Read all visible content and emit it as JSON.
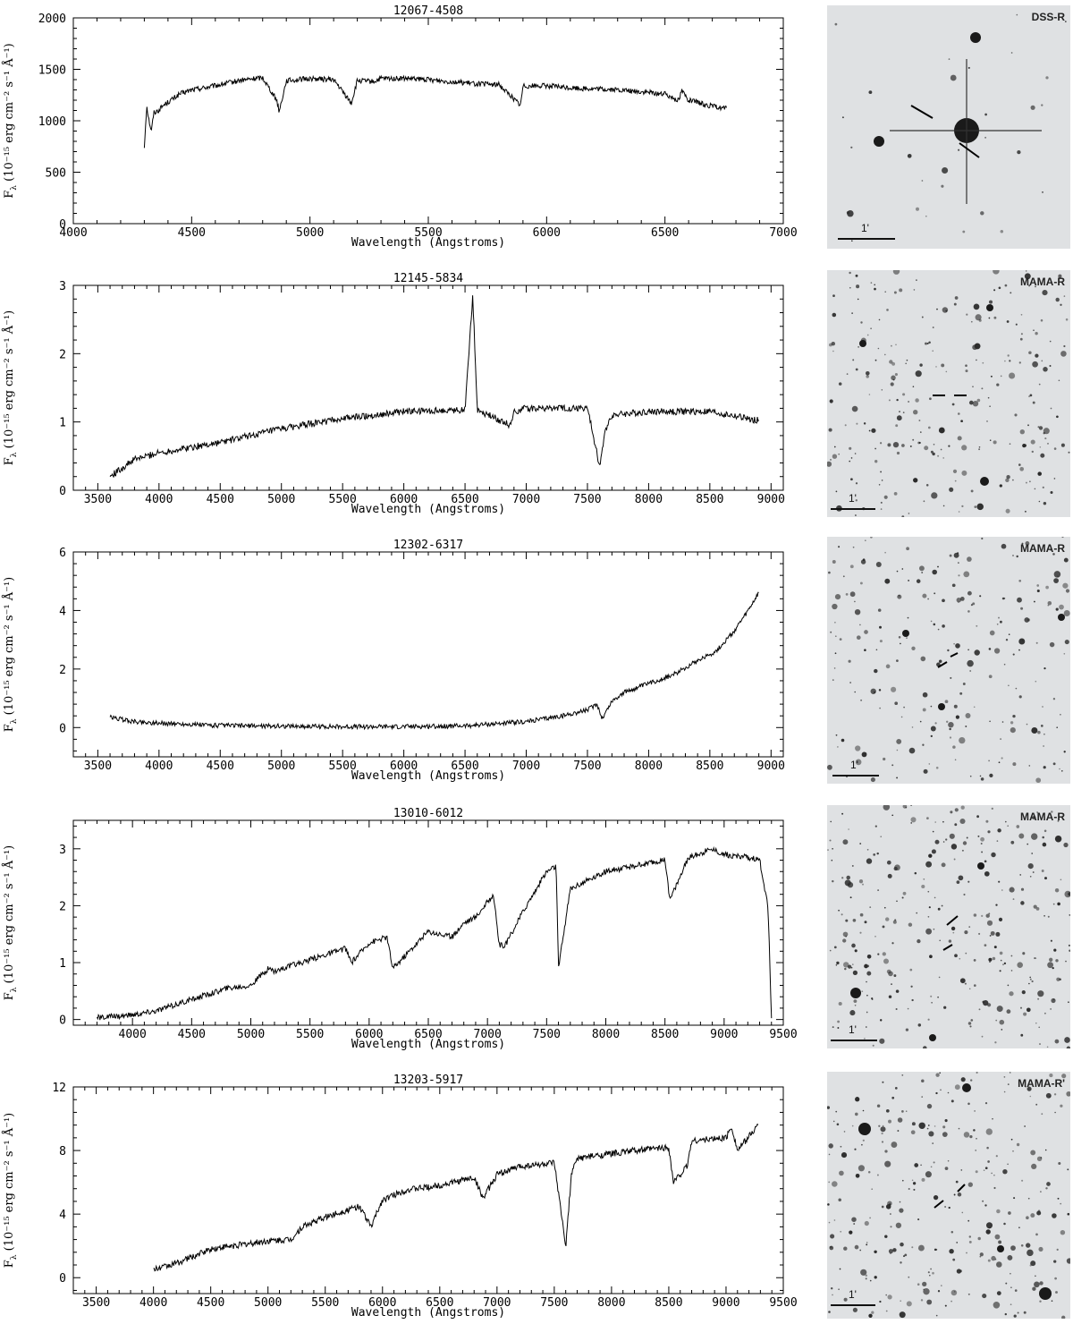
{
  "chart_data": [
    {
      "type": "line",
      "title": "12067-4508",
      "xlabel": "Wavelength (Angstroms)",
      "ylabel_base": "F",
      "ylabel_sub": "λ",
      "ylabel_unit": "(10⁻¹⁵ erg cm⁻² s⁻¹ Å⁻¹)",
      "xlim": [
        4000,
        7000
      ],
      "ylim": [
        0,
        2000
      ],
      "xticks": [
        4000,
        4500,
        5000,
        5500,
        6000,
        6500,
        7000
      ],
      "yticks": [
        0,
        500,
        1000,
        1500,
        2000
      ],
      "grid": false,
      "series": [
        {
          "x": [
            4300,
            4310,
            4320,
            4330,
            4340,
            4360,
            4380,
            4400,
            4450,
            4500,
            4550,
            4600,
            4700,
            4800,
            4860,
            4870,
            4900,
            5000,
            5100,
            5175,
            5200,
            5270,
            5300,
            5400,
            5500,
            5600,
            5700,
            5800,
            5890,
            5900,
            6000,
            6100,
            6200,
            6300,
            6400,
            6500,
            6560,
            6570,
            6600,
            6700,
            6760
          ],
          "y": [
            740,
            1150,
            1000,
            900,
            1080,
            1100,
            1150,
            1180,
            1260,
            1300,
            1320,
            1340,
            1390,
            1420,
            1200,
            1090,
            1390,
            1410,
            1400,
            1170,
            1390,
            1380,
            1410,
            1410,
            1400,
            1380,
            1360,
            1350,
            1150,
            1340,
            1340,
            1320,
            1310,
            1300,
            1280,
            1260,
            1200,
            1300,
            1200,
            1140,
            1120
          ]
        }
      ],
      "dips": [
        [
          4340,
          120
        ],
        [
          4860,
          300
        ],
        [
          5175,
          200
        ],
        [
          5890,
          180
        ],
        [
          6560,
          80
        ]
      ],
      "noise": 25,
      "finder": {
        "survey": "DSS-R",
        "scale": "1'"
      }
    },
    {
      "type": "line",
      "title": "12145-5834",
      "xlabel": "Wavelength (Angstroms)",
      "ylabel_base": "F",
      "ylabel_sub": "λ",
      "ylabel_unit": "(10⁻¹⁵ erg cm⁻² s⁻¹ Å⁻¹)",
      "xlim": [
        3300,
        9100
      ],
      "ylim": [
        0,
        3
      ],
      "xticks": [
        3500,
        4000,
        4500,
        5000,
        5500,
        6000,
        6500,
        7000,
        7500,
        8000,
        8500,
        9000
      ],
      "yticks": [
        0,
        1,
        2,
        3
      ],
      "grid": false,
      "series": [
        {
          "x": [
            3600,
            3800,
            4000,
            4500,
            5000,
            5500,
            6000,
            6500,
            6563,
            6600,
            6870,
            6900,
            7000,
            7500,
            7600,
            7650,
            7700,
            8000,
            8500,
            8900
          ],
          "y": [
            0.2,
            0.45,
            0.55,
            0.7,
            0.9,
            1.05,
            1.15,
            1.18,
            2.85,
            1.18,
            0.95,
            1.15,
            1.2,
            1.2,
            0.35,
            0.9,
            1.1,
            1.15,
            1.15,
            1.02
          ]
        }
      ],
      "dips": [
        [
          6870,
          0.25
        ],
        [
          7600,
          0.8
        ]
      ],
      "spikes": [
        [
          6563,
          1.65
        ]
      ],
      "noise": 0.05,
      "finder": {
        "survey": "MAMA-R",
        "scale": "1'"
      }
    },
    {
      "type": "line",
      "title": "12302-6317",
      "xlabel": "Wavelength (Angstroms)",
      "ylabel_base": "F",
      "ylabel_sub": "λ",
      "ylabel_unit": "(10⁻¹⁵ erg cm⁻² s⁻¹ Å⁻¹)",
      "xlim": [
        3300,
        9100
      ],
      "ylim": [
        -1,
        6
      ],
      "xticks": [
        3500,
        4000,
        4500,
        5000,
        5500,
        6000,
        6500,
        7000,
        7500,
        8000,
        8500,
        9000
      ],
      "yticks": [
        0,
        2,
        4,
        6
      ],
      "grid": false,
      "series": [
        {
          "x": [
            3600,
            3800,
            4000,
            4500,
            5000,
            5500,
            6000,
            6500,
            7000,
            7300,
            7500,
            7580,
            7620,
            7700,
            7800,
            8000,
            8200,
            8400,
            8550,
            8700,
            8800,
            8900
          ],
          "y": [
            0.35,
            0.2,
            0.15,
            0.07,
            0.05,
            0.03,
            0.03,
            0.06,
            0.2,
            0.4,
            0.6,
            0.8,
            0.3,
            0.9,
            1.2,
            1.5,
            1.8,
            2.3,
            2.6,
            3.3,
            3.9,
            4.6
          ]
        }
      ],
      "dips": [
        [
          7600,
          0.5
        ],
        [
          8550,
          0.5
        ]
      ],
      "noise": 0.08,
      "finder": {
        "survey": "MAMA-R",
        "scale": "1'"
      }
    },
    {
      "type": "line",
      "title": "13010-6012",
      "xlabel": "Wavelength (Angstroms)",
      "ylabel_base": "F",
      "ylabel_sub": "λ",
      "ylabel_unit": "(10⁻¹⁵ erg cm⁻² s⁻¹ Å⁻¹)",
      "xlim": [
        3500,
        9500
      ],
      "ylim": [
        -0.1,
        3.5
      ],
      "xticks": [
        4000,
        4500,
        5000,
        5500,
        6000,
        6500,
        7000,
        7500,
        8000,
        8500,
        9000,
        9500
      ],
      "yticks": [
        0,
        1,
        2,
        3
      ],
      "grid": false,
      "series": [
        {
          "x": [
            3700,
            4000,
            4200,
            4500,
            4800,
            5000,
            5150,
            5200,
            5500,
            5800,
            5850,
            6000,
            6150,
            6200,
            6500,
            6700,
            6800,
            6900,
            7050,
            7100,
            7150,
            7300,
            7500,
            7580,
            7600,
            7700,
            8000,
            8500,
            8540,
            8700,
            8900,
            9000,
            9200,
            9300,
            9370,
            9380,
            9400
          ],
          "y": [
            0.03,
            0.08,
            0.15,
            0.35,
            0.55,
            0.6,
            0.9,
            0.85,
            1.05,
            1.25,
            1.0,
            1.35,
            1.45,
            0.9,
            1.55,
            1.45,
            1.7,
            1.8,
            2.2,
            1.3,
            1.3,
            1.9,
            2.6,
            2.7,
            0.9,
            2.3,
            2.6,
            2.8,
            2.1,
            2.85,
            3.0,
            2.9,
            2.85,
            2.8,
            2.0,
            1.4,
            0.02
          ]
        }
      ],
      "dips": [
        [
          5150,
          0.2
        ],
        [
          5850,
          0.35
        ],
        [
          6200,
          0.4
        ],
        [
          7100,
          0.5
        ],
        [
          8540,
          0.6
        ],
        [
          8660,
          0.4
        ]
      ],
      "noise": 0.05,
      "finder": {
        "survey": "MAMA-R",
        "scale": "1'"
      }
    },
    {
      "type": "line",
      "title": "13203-5917",
      "xlabel": "Wavelength (Angstroms)",
      "ylabel_base": "F",
      "ylabel_sub": "λ",
      "ylabel_unit": "(10⁻¹⁵ erg cm⁻² s⁻¹ Å⁻¹)",
      "xlim": [
        3300,
        9500
      ],
      "ylim": [
        -1,
        12
      ],
      "xticks": [
        3500,
        4000,
        4500,
        5000,
        5500,
        6000,
        6500,
        7000,
        7500,
        8000,
        8500,
        9000,
        9500
      ],
      "yticks": [
        0,
        4,
        8,
        12
      ],
      "grid": false,
      "series": [
        {
          "x": [
            4000,
            4200,
            4500,
            4800,
            5000,
            5200,
            5300,
            5500,
            5800,
            5900,
            6000,
            6200,
            6500,
            6800,
            6880,
            7000,
            7200,
            7500,
            7600,
            7650,
            7700,
            8000,
            8200,
            8500,
            8540,
            8660,
            8700,
            9000,
            9050,
            9100,
            9280
          ],
          "y": [
            0.5,
            0.9,
            1.8,
            2.1,
            2.3,
            2.4,
            3.2,
            3.8,
            4.5,
            3.2,
            4.9,
            5.5,
            5.8,
            6.3,
            5.0,
            6.5,
            7.0,
            7.2,
            2.0,
            6.5,
            7.5,
            7.8,
            8.0,
            8.2,
            6.0,
            7.0,
            8.6,
            8.8,
            9.5,
            8.0,
            9.6
          ]
        }
      ],
      "dips": [
        [
          5890,
          1.5
        ],
        [
          6880,
          1.3
        ],
        [
          7610,
          5.5
        ],
        [
          8540,
          2.2
        ],
        [
          8660,
          1.6
        ]
      ],
      "noise": 0.2,
      "finder": {
        "survey": "MAMA-R'",
        "scale": "1'"
      }
    }
  ]
}
